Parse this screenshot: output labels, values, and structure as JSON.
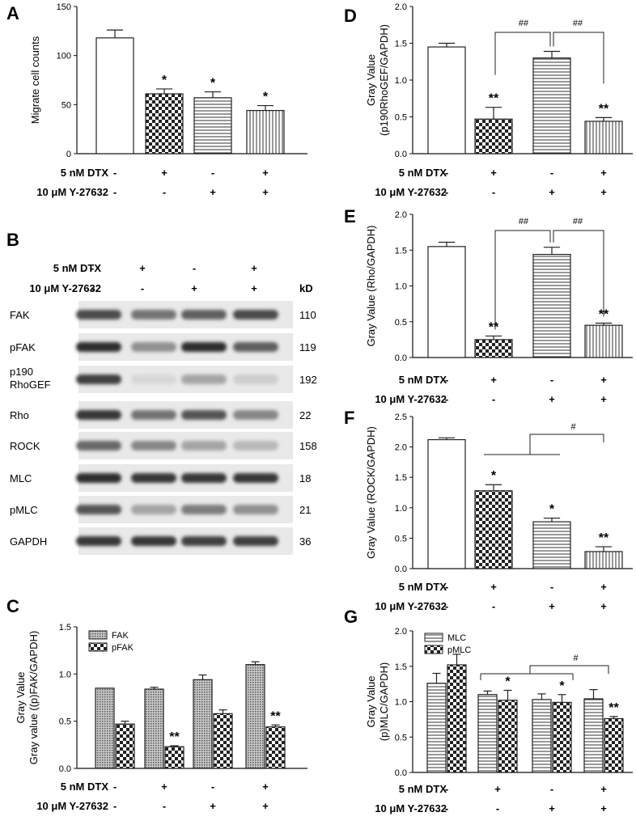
{
  "colors": {
    "ink": "#111111",
    "bar_stroke": "#222222",
    "blot_band": "#2a2a2a",
    "blot_bg": "#e9e9e9"
  },
  "treatments": {
    "dtx_label": "5 nM DTX",
    "y_label": "10 μM Y-27632",
    "dtx_signs": [
      "-",
      "+",
      "-",
      "+"
    ],
    "y_signs": [
      "-",
      "-",
      "+",
      "+"
    ]
  },
  "chart_data": [
    {
      "panel": "A",
      "type": "bar",
      "ylabel": "Migrate cell counts",
      "ylim": [
        0,
        150
      ],
      "yticks": [
        "0",
        "50",
        "100",
        "150"
      ],
      "patterns": [
        "white",
        "checker",
        "hstripe",
        "vstripe"
      ],
      "values": [
        118,
        61,
        57,
        44
      ],
      "errors": [
        8,
        5,
        6,
        5
      ],
      "marks": [
        "",
        "*",
        "*",
        "*"
      ]
    },
    {
      "panel": "D",
      "type": "bar",
      "ylabel": [
        "Gray Value",
        "(p190RhoGEF/GAPDH)"
      ],
      "ylim": [
        0,
        2.0
      ],
      "yticks": [
        "0.0",
        "0.5",
        "1.0",
        "1.5",
        "2.0"
      ],
      "patterns": [
        "white",
        "checker",
        "hstripe",
        "vstripe"
      ],
      "values": [
        1.45,
        0.47,
        1.3,
        0.44
      ],
      "errors": [
        0.05,
        0.16,
        0.09,
        0.05
      ],
      "marks": [
        "",
        "**",
        "",
        "**"
      ],
      "brackets": [
        {
          "label": "##",
          "from": 1,
          "to": 2
        },
        {
          "label": "##",
          "from": 2,
          "to": 3
        }
      ]
    },
    {
      "panel": "E",
      "type": "bar",
      "ylabel": "Gray Value (Rho/GAPDH)",
      "ylim": [
        0,
        2.0
      ],
      "yticks": [
        "0.0",
        "0.5",
        "1.0",
        "1.5",
        "2.0"
      ],
      "patterns": [
        "white",
        "checker",
        "hstripe",
        "vstripe"
      ],
      "values": [
        1.55,
        0.25,
        1.44,
        0.45
      ],
      "errors": [
        0.06,
        0.05,
        0.1,
        0.03
      ],
      "marks": [
        "",
        "**",
        "",
        "**"
      ],
      "brackets": [
        {
          "label": "##",
          "from": 1,
          "to": 2
        },
        {
          "label": "##",
          "from": 2,
          "to": 3
        }
      ]
    },
    {
      "panel": "F",
      "type": "bar",
      "ylabel": "Gray Value (ROCK/GAPDH)",
      "ylim": [
        0,
        2.5
      ],
      "yticks": [
        "0.0",
        "0.5",
        "1.0",
        "1.5",
        "2.0",
        "2.5"
      ],
      "patterns": [
        "white",
        "checker",
        "hstripe",
        "vstripe"
      ],
      "values": [
        2.12,
        1.28,
        0.77,
        0.28
      ],
      "errors": [
        0.03,
        0.1,
        0.06,
        0.08
      ],
      "marks": [
        "",
        "*",
        "*",
        "**"
      ],
      "brackets": [
        {
          "label": "#",
          "type": "group"
        }
      ]
    },
    {
      "panel": "C",
      "type": "bar",
      "ylabel": [
        "Gray Value",
        "Gray value ((p)FAK/GAPDH)"
      ],
      "ylim": [
        0,
        1.5
      ],
      "yticks": [
        "0.0",
        "0.5",
        "1.0",
        "1.5"
      ],
      "series": [
        {
          "name": "FAK",
          "pattern": "dots",
          "values": [
            0.85,
            0.84,
            0.94,
            1.1
          ],
          "errors": [
            0,
            0.02,
            0.05,
            0.03
          ],
          "marks": [
            "",
            "",
            "",
            ""
          ]
        },
        {
          "name": "pFAK",
          "pattern": "checker",
          "values": [
            0.47,
            0.23,
            0.58,
            0.44
          ],
          "errors": [
            0.03,
            0.01,
            0.04,
            0.02
          ],
          "marks": [
            "",
            "**",
            "",
            "**"
          ]
        }
      ]
    },
    {
      "panel": "G",
      "type": "bar",
      "ylabel": [
        "Gray Value",
        "(p)MLC/GAPDH)"
      ],
      "ylim": [
        0,
        2.0
      ],
      "yticks": [
        "0.0",
        "0.5",
        "1.0",
        "1.5",
        "2.0"
      ],
      "series": [
        {
          "name": "MLC",
          "pattern": "hstripe",
          "values": [
            1.26,
            1.1,
            1.03,
            1.04
          ],
          "errors": [
            0.14,
            0.05,
            0.08,
            0.13
          ],
          "marks": [
            "",
            "",
            "",
            ""
          ]
        },
        {
          "name": "pMLC",
          "pattern": "checker",
          "values": [
            1.52,
            1.02,
            0.99,
            0.76
          ],
          "errors": [
            0.15,
            0.14,
            0.11,
            0.03
          ],
          "marks": [
            "",
            "*",
            "*",
            "**"
          ]
        }
      ],
      "brackets": [
        {
          "label": "#",
          "type": "group"
        }
      ]
    }
  ],
  "blot": {
    "kd_label": "kD",
    "rows": [
      {
        "label": "FAK",
        "kd": "110",
        "intensity": [
          0.8,
          0.6,
          0.7,
          0.8
        ]
      },
      {
        "label": "pFAK",
        "kd": "119",
        "intensity": [
          0.95,
          0.45,
          0.95,
          0.7
        ]
      },
      {
        "label": "p190",
        "label2": "RhoGEF",
        "kd": "192",
        "intensity": [
          0.85,
          0.1,
          0.35,
          0.15
        ]
      },
      {
        "label": "Rho",
        "kd": "22",
        "intensity": [
          0.9,
          0.6,
          0.75,
          0.5
        ]
      },
      {
        "label": "ROCK",
        "kd": "158",
        "intensity": [
          0.65,
          0.5,
          0.35,
          0.25
        ]
      },
      {
        "label": "MLC",
        "kd": "18",
        "intensity": [
          0.95,
          0.9,
          0.9,
          0.9
        ]
      },
      {
        "label": "pMLC",
        "kd": "21",
        "intensity": [
          0.75,
          0.35,
          0.55,
          0.45
        ]
      },
      {
        "label": "GAPDH",
        "kd": "36",
        "intensity": [
          0.9,
          0.9,
          0.85,
          0.85
        ]
      }
    ]
  },
  "panel_letters": {
    "A": "A",
    "B": "B",
    "C": "C",
    "D": "D",
    "E": "E",
    "F": "F",
    "G": "G"
  }
}
